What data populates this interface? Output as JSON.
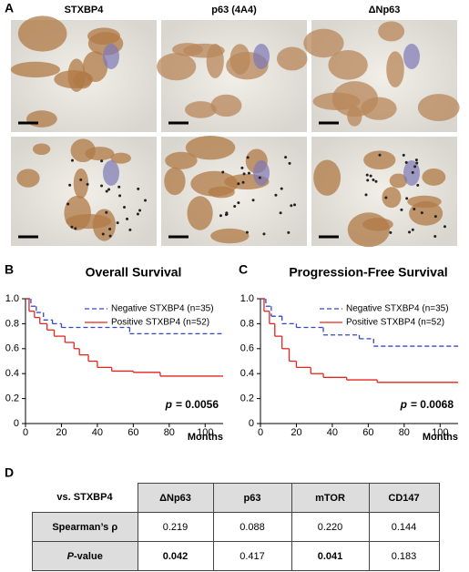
{
  "panel_labels": [
    "A",
    "B",
    "C",
    "D"
  ],
  "image_columns": [
    "STXBP4",
    "p63 (4A4)",
    "ΔNp63"
  ],
  "chart_data": [
    {
      "type": "step",
      "title": "Overall Survival",
      "x_label": "Months",
      "p_symbol": "p",
      "p_text": "= 0.0056",
      "xlim": [
        0,
        110
      ],
      "xticks": [
        0,
        20,
        40,
        60,
        80,
        100
      ],
      "ylim": [
        0,
        1
      ],
      "yticks": [
        0,
        0.2,
        0.4,
        0.6,
        0.8,
        {
          "value": 1,
          "label": "1.0"
        }
      ],
      "series": [
        {
          "name": "Negative STXBP4 (n=35)",
          "color": "#3347c6",
          "dash": true,
          "x": [
            0,
            3,
            6,
            10,
            15,
            20,
            58,
            110
          ],
          "values": [
            1,
            0.94,
            0.89,
            0.83,
            0.8,
            0.77,
            0.72,
            0.72
          ]
        },
        {
          "name": "Positive STXBP4 (n=52)",
          "color": "#e3261f",
          "dash": false,
          "x": [
            0,
            2,
            5,
            8,
            12,
            16,
            22,
            27,
            30,
            35,
            40,
            48,
            60,
            75,
            110
          ],
          "values": [
            1,
            0.9,
            0.85,
            0.8,
            0.75,
            0.7,
            0.65,
            0.6,
            0.55,
            0.5,
            0.45,
            0.42,
            0.41,
            0.38,
            0.38
          ]
        }
      ]
    },
    {
      "type": "step",
      "title": "Progression-Free Survival",
      "x_label": "Months",
      "p_symbol": "p",
      "p_text": "= 0.0068",
      "xlim": [
        0,
        110
      ],
      "xticks": [
        0,
        20,
        40,
        60,
        80,
        100
      ],
      "ylim": [
        0,
        1
      ],
      "yticks": [
        0,
        0.2,
        0.4,
        0.6,
        0.8,
        {
          "value": 1,
          "label": "1.0"
        }
      ],
      "series": [
        {
          "name": "Negative STXBP4 (n=35)",
          "color": "#3347c6",
          "dash": true,
          "x": [
            0,
            3,
            6,
            12,
            20,
            35,
            55,
            63,
            110
          ],
          "values": [
            1,
            0.94,
            0.86,
            0.8,
            0.77,
            0.71,
            0.68,
            0.62,
            0.62
          ]
        },
        {
          "name": "Positive STXBP4 (n=52)",
          "color": "#e3261f",
          "dash": false,
          "x": [
            0,
            2,
            5,
            8,
            12,
            16,
            20,
            28,
            35,
            48,
            65,
            110
          ],
          "values": [
            1,
            0.9,
            0.8,
            0.7,
            0.6,
            0.5,
            0.45,
            0.4,
            0.37,
            0.35,
            0.33,
            0.33
          ]
        }
      ]
    }
  ],
  "table": {
    "corner": "vs. STXBP4",
    "columns": [
      "ΔNp63",
      "p63",
      "mTOR",
      "CD147"
    ],
    "rows": [
      {
        "label": "Spearman’s ρ",
        "cells": [
          "0.219",
          "0.088",
          "0.220",
          "0.144"
        ]
      },
      {
        "label": "P",
        "label_rest": "-value",
        "cells": [
          "0.042",
          "0.417",
          "0.041",
          "0.183"
        ]
      }
    ]
  }
}
